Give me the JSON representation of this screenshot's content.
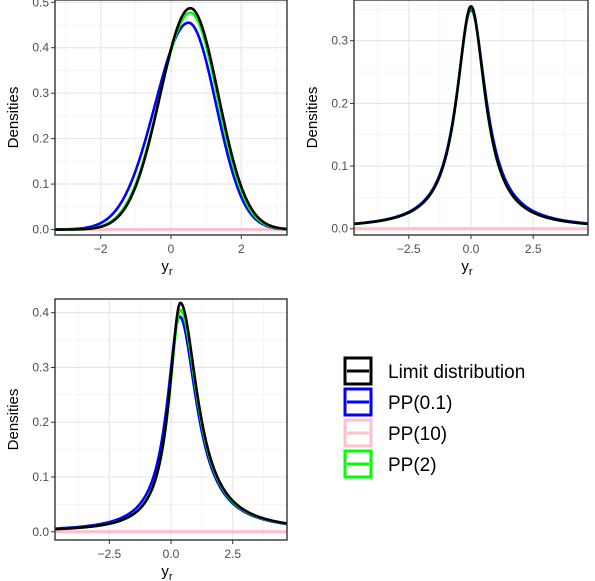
{
  "legend": {
    "items": [
      {
        "label": "Limit distribution",
        "color": "#000000"
      },
      {
        "label": "PP(0.1)",
        "color": "#0000FF"
      },
      {
        "label": "PP(10)",
        "color": "#FFC0CB"
      },
      {
        "label": "PP(2)",
        "color": "#00FF00"
      }
    ]
  },
  "chart_data": [
    {
      "type": "line",
      "ylabel": "Densities",
      "xlabel_main": "y",
      "xlabel_sub": "r",
      "xlim": [
        -3.3,
        3.3
      ],
      "ylim": [
        -0.012,
        0.505
      ],
      "xticks": [
        -2,
        0,
        2
      ],
      "xtick_labels": [
        "-2",
        "0",
        "2"
      ],
      "yticks": [
        0.0,
        0.1,
        0.2,
        0.3,
        0.4,
        0.5
      ],
      "ytick_labels": [
        "0.0",
        "0.1",
        "0.2",
        "0.3",
        "0.4",
        "0.5"
      ],
      "grid": true,
      "series": [
        {
          "name": "PP(10)",
          "color": "#FFC0CB",
          "shape": "flat",
          "params": {
            "level": 0.0
          }
        },
        {
          "name": "PP(0.1)",
          "color": "#0000FF",
          "shape": "skewnormal",
          "params": {
            "peak_x": 0.5,
            "peak_y": 0.455,
            "sd_left": 0.95,
            "sd_right": 0.78
          }
        },
        {
          "name": "PP(2)",
          "color": "#00FF00",
          "shape": "skewnormal",
          "params": {
            "peak_x": 0.55,
            "peak_y": 0.477,
            "sd_left": 0.88,
            "sd_right": 0.78
          }
        },
        {
          "name": "Limit distribution",
          "color": "#000000",
          "shape": "skewnormal",
          "params": {
            "peak_x": 0.55,
            "peak_y": 0.487,
            "sd_left": 0.86,
            "sd_right": 0.8
          }
        }
      ]
    },
    {
      "type": "line",
      "ylabel": "Densities",
      "xlabel_main": "y",
      "xlabel_sub": "r",
      "xlim": [
        -4.7,
        4.7
      ],
      "ylim": [
        -0.01,
        0.365
      ],
      "xticks": [
        -2.5,
        0.0,
        2.5
      ],
      "xtick_labels": [
        "-2.5",
        "0.0",
        "2.5"
      ],
      "yticks": [
        0.0,
        0.1,
        0.2,
        0.3
      ],
      "ytick_labels": [
        "0.0",
        "0.1",
        "0.2",
        "0.3"
      ],
      "grid": true,
      "series": [
        {
          "name": "PP(10)",
          "color": "#FFC0CB",
          "shape": "flat",
          "params": {
            "level": 0.0
          }
        },
        {
          "name": "PP(0.1)",
          "color": "#0000FF",
          "shape": "cauchylike",
          "params": {
            "peak_x": 0.0,
            "peak_y": 0.35,
            "scale_left": 0.72,
            "scale_right": 0.74
          }
        },
        {
          "name": "PP(2)",
          "color": "#00FF00",
          "shape": "cauchylike",
          "params": {
            "peak_x": 0.0,
            "peak_y": 0.353,
            "scale_left": 0.7,
            "scale_right": 0.7
          }
        },
        {
          "name": "Limit distribution",
          "color": "#000000",
          "shape": "cauchylike",
          "params": {
            "peak_x": 0.0,
            "peak_y": 0.355,
            "scale_left": 0.7,
            "scale_right": 0.7
          }
        }
      ]
    },
    {
      "type": "line",
      "ylabel": "Densities",
      "xlabel_main": "y",
      "xlabel_sub": "r",
      "xlim": [
        -4.7,
        4.7
      ],
      "ylim": [
        -0.015,
        0.425
      ],
      "xticks": [
        -2.5,
        0.0,
        2.5
      ],
      "xtick_labels": [
        "-2.5",
        "0.0",
        "2.5"
      ],
      "yticks": [
        0.0,
        0.1,
        0.2,
        0.3,
        0.4
      ],
      "ytick_labels": [
        "0.0",
        "0.1",
        "0.2",
        "0.3",
        "0.4"
      ],
      "grid": true,
      "series": [
        {
          "name": "PP(10)",
          "color": "#FFC0CB",
          "shape": "flat",
          "params": {
            "level": 0.0
          }
        },
        {
          "name": "PP(0.1)",
          "color": "#0000FF",
          "shape": "cauchylike",
          "params": {
            "peak_x": 0.35,
            "peak_y": 0.393,
            "scale_left": 0.62,
            "scale_right": 0.84
          }
        },
        {
          "name": "PP(2)",
          "color": "#00FF00",
          "shape": "cauchylike",
          "params": {
            "peak_x": 0.38,
            "peak_y": 0.405,
            "scale_left": 0.56,
            "scale_right": 0.84
          }
        },
        {
          "name": "Limit distribution",
          "color": "#000000",
          "shape": "cauchylike",
          "params": {
            "peak_x": 0.38,
            "peak_y": 0.418,
            "scale_left": 0.55,
            "scale_right": 0.84
          }
        }
      ]
    }
  ]
}
